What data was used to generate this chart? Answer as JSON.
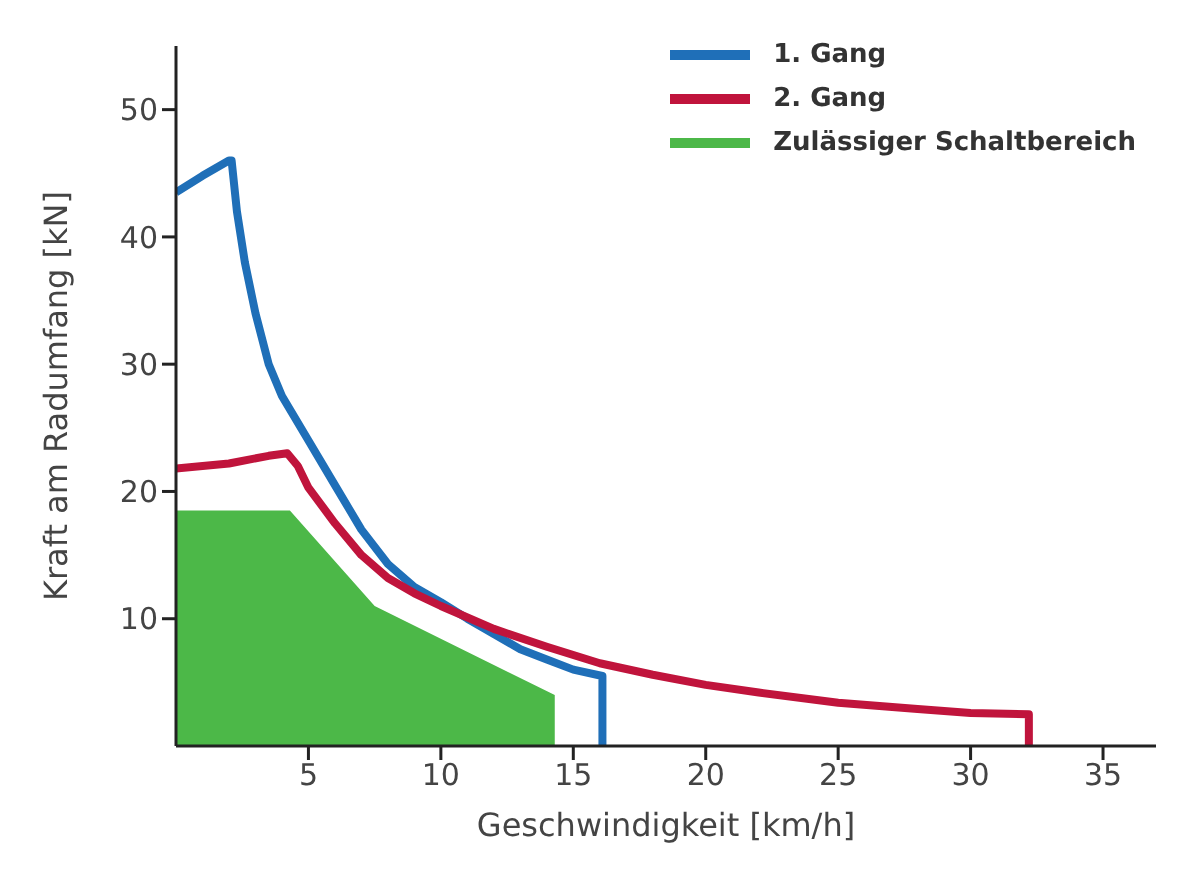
{
  "chart_data": {
    "type": "line",
    "xlabel": "Geschwindigkeit [km/h]",
    "ylabel": "Kraft am Radumfang [kN]",
    "xlim": [
      0,
      37
    ],
    "ylim": [
      0,
      55
    ],
    "xticks": [
      5,
      10,
      15,
      20,
      25,
      30,
      35
    ],
    "yticks": [
      10,
      20,
      30,
      40,
      50
    ],
    "grid": false,
    "legend": "top right",
    "marker": "none",
    "line_style": "solid",
    "series": [
      {
        "name": "1. Gang",
        "color": "#1f6fb8",
        "x": [
          0,
          1,
          2,
          2.1,
          2.3,
          2.6,
          3,
          3.5,
          4,
          5,
          6,
          7,
          8,
          9,
          10,
          11,
          12,
          13,
          14,
          15,
          16.1,
          16.1
        ],
        "values": [
          43.5,
          44.8,
          46,
          46,
          42,
          38,
          34,
          30,
          27.5,
          24,
          20.5,
          17,
          14.3,
          12.5,
          11.3,
          10,
          8.8,
          7.6,
          6.8,
          6,
          5.5,
          0
        ]
      },
      {
        "name": "2. Gang",
        "color": "#c0143c",
        "x": [
          0,
          2,
          3.5,
          4.2,
          4.6,
          5,
          6,
          7,
          8,
          9,
          10,
          12,
          14,
          16,
          18,
          20,
          22,
          25,
          28,
          30,
          32.2,
          32.2
        ],
        "values": [
          21.8,
          22.2,
          22.8,
          23,
          22,
          20.3,
          17.5,
          15,
          13.2,
          12,
          11,
          9.2,
          7.8,
          6.5,
          5.6,
          4.8,
          4.2,
          3.4,
          2.9,
          2.6,
          2.5,
          0
        ]
      },
      {
        "name": "Zulässiger Schaltbereich",
        "color": "#4cb848",
        "type": "area",
        "x": [
          0,
          4.3,
          7.5,
          14.3,
          14.3
        ],
        "values": [
          18.5,
          18.5,
          11,
          4,
          0
        ]
      }
    ]
  }
}
